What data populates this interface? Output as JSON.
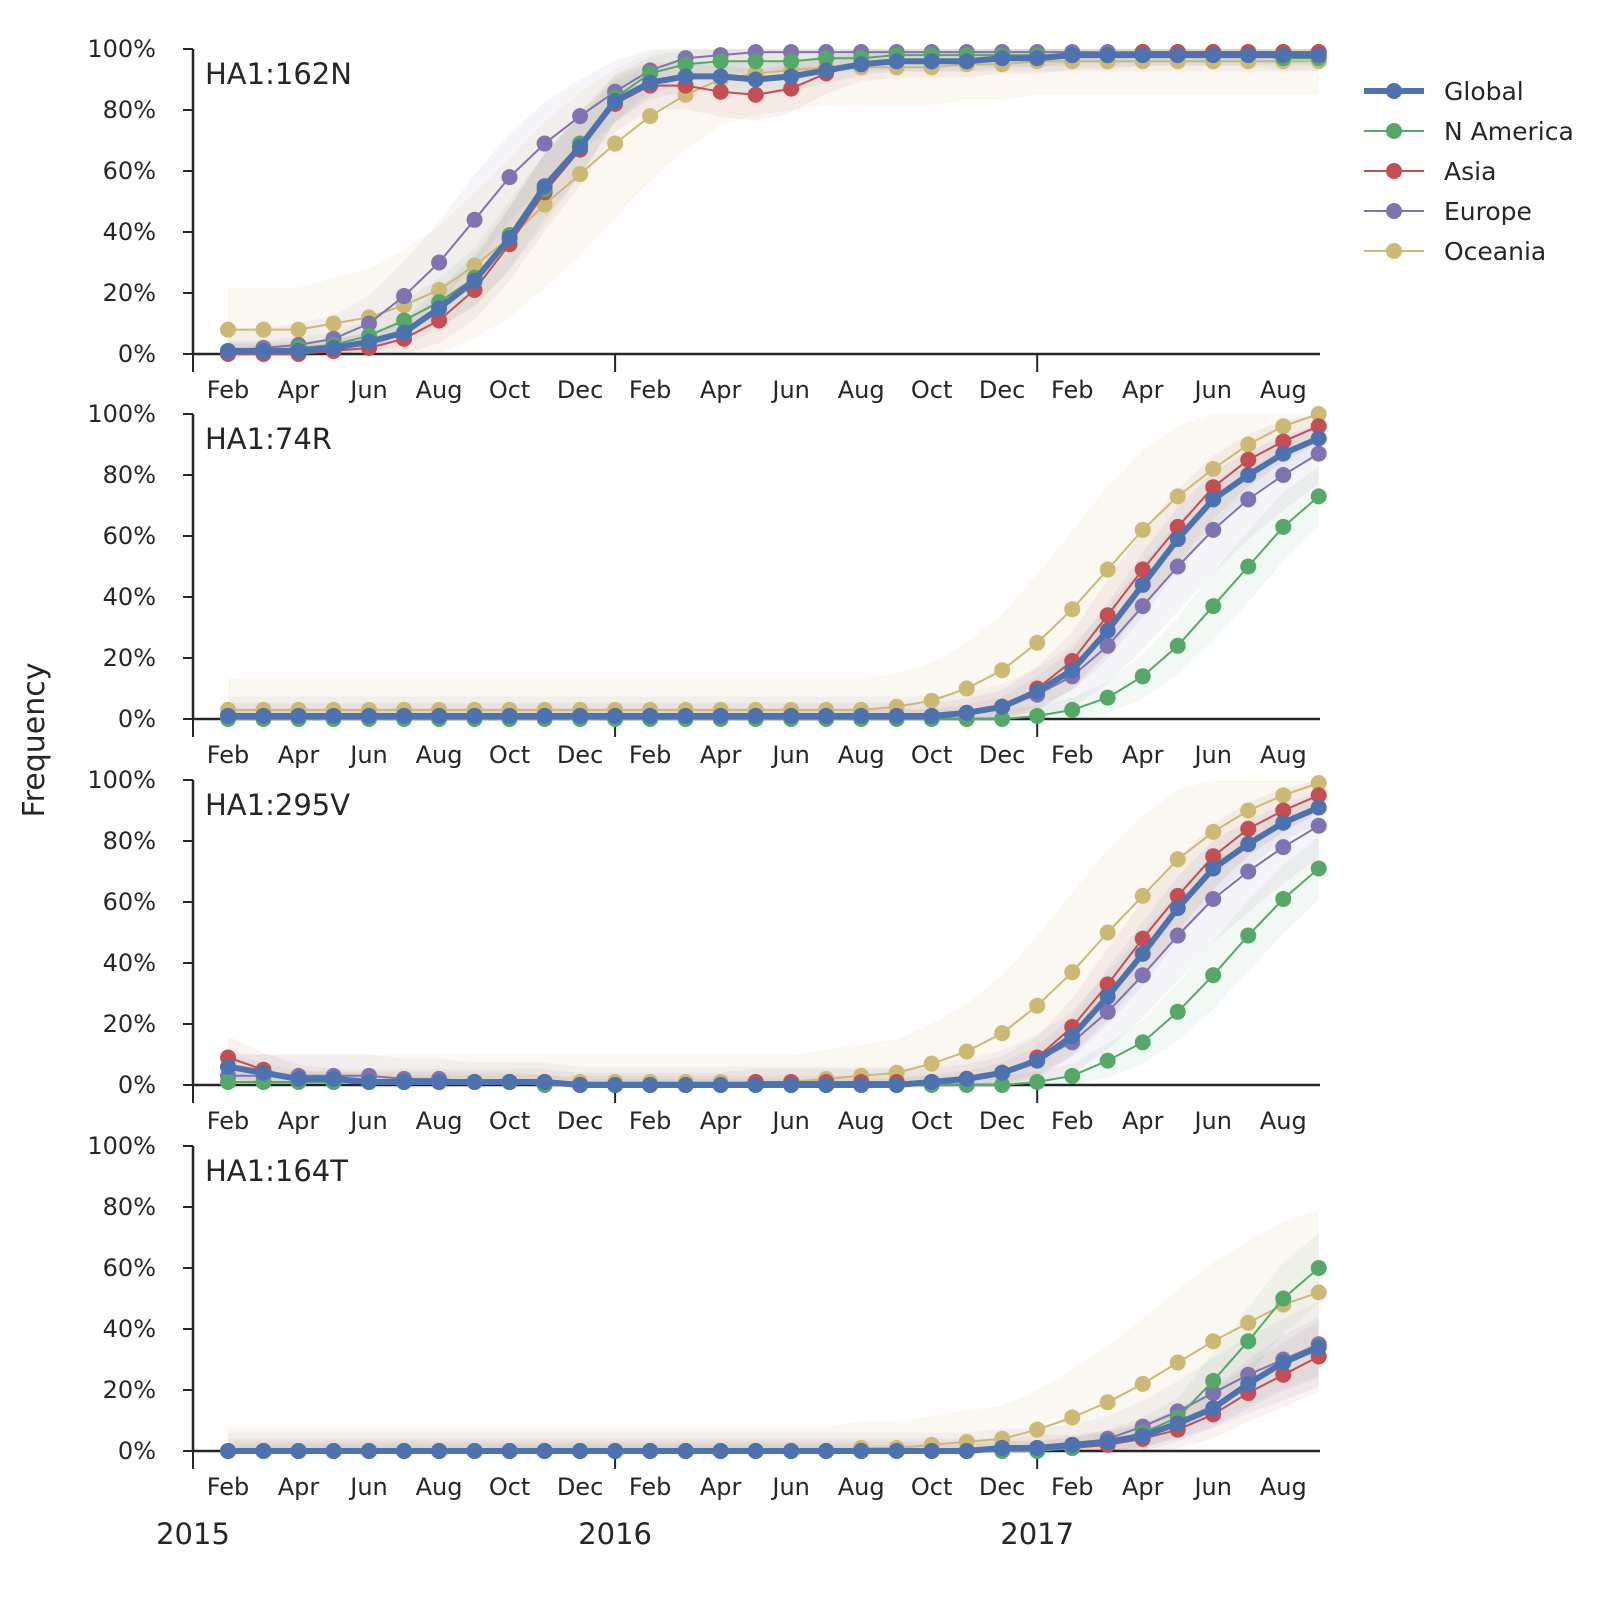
{
  "chart_data": {
    "type": "line",
    "ylabel": "Frequency",
    "yticks": [
      "0%",
      "20%",
      "40%",
      "60%",
      "80%",
      "100%"
    ],
    "ylim": [
      0,
      1
    ],
    "xlim": [
      2015.0,
      2017.67
    ],
    "month_ticks": [
      {
        "x": 2015.083,
        "label": "Feb"
      },
      {
        "x": 2015.25,
        "label": "Apr"
      },
      {
        "x": 2015.417,
        "label": "Jun"
      },
      {
        "x": 2015.583,
        "label": "Aug"
      },
      {
        "x": 2015.75,
        "label": "Oct"
      },
      {
        "x": 2015.917,
        "label": "Dec"
      },
      {
        "x": 2016.083,
        "label": "Feb"
      },
      {
        "x": 2016.25,
        "label": "Apr"
      },
      {
        "x": 2016.417,
        "label": "Jun"
      },
      {
        "x": 2016.583,
        "label": "Aug"
      },
      {
        "x": 2016.75,
        "label": "Oct"
      },
      {
        "x": 2016.917,
        "label": "Dec"
      },
      {
        "x": 2017.083,
        "label": "Feb"
      },
      {
        "x": 2017.25,
        "label": "Apr"
      },
      {
        "x": 2017.417,
        "label": "Jun"
      },
      {
        "x": 2017.583,
        "label": "Aug"
      }
    ],
    "year_ticks": [
      {
        "x": 2015.0,
        "label": "2015"
      },
      {
        "x": 2016.0,
        "label": "2016"
      },
      {
        "x": 2017.0,
        "label": "2017"
      }
    ],
    "legend": {
      "placement": "upper-right-outside"
    },
    "series_styles": [
      {
        "name": "Global",
        "color": "#4c72b0",
        "width": 6
      },
      {
        "name": "N America",
        "color": "#55a868",
        "width": 2
      },
      {
        "name": "Asia",
        "color": "#c44e52",
        "width": 2
      },
      {
        "name": "Europe",
        "color": "#8172b2",
        "width": 2
      },
      {
        "name": "Oceania",
        "color": "#ccb974",
        "width": 2
      }
    ],
    "x": [
      2015.083,
      2015.167,
      2015.25,
      2015.333,
      2015.417,
      2015.5,
      2015.583,
      2015.667,
      2015.75,
      2015.833,
      2015.917,
      2016.0,
      2016.083,
      2016.167,
      2016.25,
      2016.333,
      2016.417,
      2016.5,
      2016.583,
      2016.667,
      2016.75,
      2016.833,
      2016.917,
      2017.0,
      2017.083,
      2017.167,
      2017.25,
      2017.333,
      2017.417,
      2017.5,
      2017.583,
      2017.667
    ],
    "panels": [
      {
        "label": "HA1:162N",
        "series": [
          {
            "name": "Global",
            "values": [
              0.01,
              0.01,
              0.01,
              0.02,
              0.04,
              0.07,
              0.15,
              0.24,
              0.38,
              0.55,
              0.68,
              0.83,
              0.89,
              0.91,
              0.91,
              0.9,
              0.91,
              0.93,
              0.95,
              0.96,
              0.96,
              0.96,
              0.97,
              0.97,
              0.98,
              0.98,
              0.98,
              0.98,
              0.98,
              0.98,
              0.98,
              0.98
            ]
          },
          {
            "name": "N America",
            "values": [
              0.01,
              0.01,
              0.02,
              0.03,
              0.06,
              0.11,
              0.17,
              0.25,
              0.39,
              0.54,
              0.69,
              0.84,
              0.92,
              0.95,
              0.96,
              0.96,
              0.96,
              0.97,
              0.97,
              0.98,
              0.98,
              0.98,
              0.98,
              0.98,
              0.98,
              0.98,
              0.98,
              0.98,
              0.98,
              0.98,
              0.97,
              0.97
            ]
          },
          {
            "name": "Asia",
            "values": [
              0.0,
              0.0,
              0.0,
              0.01,
              0.02,
              0.05,
              0.11,
              0.21,
              0.36,
              0.53,
              0.67,
              0.82,
              0.88,
              0.88,
              0.86,
              0.85,
              0.87,
              0.92,
              0.95,
              0.96,
              0.96,
              0.96,
              0.97,
              0.97,
              0.98,
              0.98,
              0.99,
              0.99,
              0.99,
              0.99,
              0.99,
              0.99
            ]
          },
          {
            "name": "Europe",
            "values": [
              0.01,
              0.02,
              0.03,
              0.05,
              0.1,
              0.19,
              0.3,
              0.44,
              0.58,
              0.69,
              0.78,
              0.86,
              0.93,
              0.97,
              0.98,
              0.99,
              0.99,
              0.99,
              0.99,
              0.99,
              0.99,
              0.99,
              0.99,
              0.99,
              0.99,
              0.99,
              0.99,
              0.99,
              0.99,
              0.99,
              0.99,
              0.99
            ]
          },
          {
            "name": "Oceania",
            "values": [
              0.08,
              0.08,
              0.08,
              0.1,
              0.12,
              0.16,
              0.21,
              0.29,
              0.38,
              0.49,
              0.59,
              0.69,
              0.78,
              0.85,
              0.9,
              0.92,
              0.93,
              0.94,
              0.94,
              0.94,
              0.94,
              0.95,
              0.95,
              0.96,
              0.96,
              0.96,
              0.96,
              0.96,
              0.96,
              0.96,
              0.96,
              0.96
            ]
          }
        ]
      },
      {
        "label": "HA1:74R",
        "series": [
          {
            "name": "Global",
            "values": [
              0.01,
              0.01,
              0.01,
              0.01,
              0.01,
              0.01,
              0.01,
              0.01,
              0.01,
              0.01,
              0.01,
              0.01,
              0.01,
              0.01,
              0.01,
              0.01,
              0.01,
              0.01,
              0.01,
              0.01,
              0.01,
              0.02,
              0.04,
              0.09,
              0.16,
              0.29,
              0.44,
              0.59,
              0.72,
              0.8,
              0.87,
              0.92
            ]
          },
          {
            "name": "N America",
            "values": [
              0.0,
              0.0,
              0.0,
              0.0,
              0.0,
              0.0,
              0.0,
              0.0,
              0.0,
              0.0,
              0.0,
              0.0,
              0.0,
              0.0,
              0.0,
              0.0,
              0.0,
              0.0,
              0.0,
              0.0,
              0.0,
              0.0,
              0.0,
              0.01,
              0.03,
              0.07,
              0.14,
              0.24,
              0.37,
              0.5,
              0.63,
              0.73
            ]
          },
          {
            "name": "Asia",
            "values": [
              0.01,
              0.01,
              0.01,
              0.01,
              0.01,
              0.01,
              0.01,
              0.01,
              0.01,
              0.01,
              0.01,
              0.01,
              0.01,
              0.01,
              0.01,
              0.01,
              0.01,
              0.01,
              0.01,
              0.01,
              0.01,
              0.02,
              0.04,
              0.1,
              0.19,
              0.34,
              0.49,
              0.63,
              0.76,
              0.85,
              0.91,
              0.96
            ]
          },
          {
            "name": "Europe",
            "values": [
              0.01,
              0.01,
              0.01,
              0.01,
              0.01,
              0.01,
              0.01,
              0.01,
              0.01,
              0.01,
              0.01,
              0.01,
              0.01,
              0.01,
              0.01,
              0.01,
              0.01,
              0.01,
              0.01,
              0.01,
              0.01,
              0.02,
              0.04,
              0.08,
              0.14,
              0.24,
              0.37,
              0.5,
              0.62,
              0.72,
              0.8,
              0.87
            ]
          },
          {
            "name": "Oceania",
            "values": [
              0.03,
              0.03,
              0.03,
              0.03,
              0.03,
              0.03,
              0.03,
              0.03,
              0.03,
              0.03,
              0.03,
              0.03,
              0.03,
              0.03,
              0.03,
              0.03,
              0.03,
              0.03,
              0.03,
              0.04,
              0.06,
              0.1,
              0.16,
              0.25,
              0.36,
              0.49,
              0.62,
              0.73,
              0.82,
              0.9,
              0.96,
              1.0
            ]
          }
        ]
      },
      {
        "label": "HA1:295V",
        "series": [
          {
            "name": "Global",
            "values": [
              0.06,
              0.04,
              0.02,
              0.02,
              0.01,
              0.01,
              0.01,
              0.01,
              0.01,
              0.01,
              0.0,
              0.0,
              0.0,
              0.0,
              0.0,
              0.0,
              0.0,
              0.0,
              0.0,
              0.0,
              0.01,
              0.02,
              0.04,
              0.08,
              0.16,
              0.29,
              0.43,
              0.58,
              0.71,
              0.79,
              0.86,
              0.91
            ]
          },
          {
            "name": "N America",
            "values": [
              0.01,
              0.01,
              0.01,
              0.01,
              0.01,
              0.01,
              0.01,
              0.01,
              0.01,
              0.0,
              0.0,
              0.0,
              0.0,
              0.0,
              0.0,
              0.0,
              0.0,
              0.0,
              0.0,
              0.0,
              0.0,
              0.0,
              0.0,
              0.01,
              0.03,
              0.08,
              0.14,
              0.24,
              0.36,
              0.49,
              0.61,
              0.71
            ]
          },
          {
            "name": "Asia",
            "values": [
              0.09,
              0.05,
              0.02,
              0.01,
              0.01,
              0.01,
              0.01,
              0.01,
              0.01,
              0.01,
              0.0,
              0.0,
              0.0,
              0.0,
              0.0,
              0.01,
              0.01,
              0.01,
              0.01,
              0.01,
              0.01,
              0.02,
              0.04,
              0.09,
              0.19,
              0.33,
              0.48,
              0.62,
              0.75,
              0.84,
              0.9,
              0.95
            ]
          },
          {
            "name": "Europe",
            "values": [
              0.03,
              0.03,
              0.03,
              0.03,
              0.03,
              0.02,
              0.02,
              0.01,
              0.01,
              0.01,
              0.0,
              0.0,
              0.0,
              0.0,
              0.0,
              0.0,
              0.0,
              0.0,
              0.0,
              0.0,
              0.01,
              0.02,
              0.04,
              0.08,
              0.14,
              0.24,
              0.36,
              0.49,
              0.61,
              0.7,
              0.78,
              0.85
            ]
          },
          {
            "name": "Oceania",
            "values": [
              0.01,
              0.01,
              0.01,
              0.01,
              0.01,
              0.01,
              0.01,
              0.01,
              0.01,
              0.01,
              0.01,
              0.01,
              0.01,
              0.01,
              0.01,
              0.01,
              0.01,
              0.02,
              0.03,
              0.04,
              0.07,
              0.11,
              0.17,
              0.26,
              0.37,
              0.5,
              0.62,
              0.74,
              0.83,
              0.9,
              0.95,
              0.99
            ]
          }
        ]
      },
      {
        "label": "HA1:164T",
        "series": [
          {
            "name": "Global",
            "values": [
              0.0,
              0.0,
              0.0,
              0.0,
              0.0,
              0.0,
              0.0,
              0.0,
              0.0,
              0.0,
              0.0,
              0.0,
              0.0,
              0.0,
              0.0,
              0.0,
              0.0,
              0.0,
              0.0,
              0.0,
              0.0,
              0.0,
              0.01,
              0.01,
              0.02,
              0.03,
              0.05,
              0.09,
              0.14,
              0.22,
              0.29,
              0.34
            ]
          },
          {
            "name": "N America",
            "values": [
              0.0,
              0.0,
              0.0,
              0.0,
              0.0,
              0.0,
              0.0,
              0.0,
              0.0,
              0.0,
              0.0,
              0.0,
              0.0,
              0.0,
              0.0,
              0.0,
              0.0,
              0.0,
              0.0,
              0.0,
              0.0,
              0.0,
              0.0,
              0.0,
              0.01,
              0.03,
              0.06,
              0.11,
              0.23,
              0.36,
              0.5,
              0.6
            ]
          },
          {
            "name": "Asia",
            "values": [
              0.0,
              0.0,
              0.0,
              0.0,
              0.0,
              0.0,
              0.0,
              0.0,
              0.0,
              0.0,
              0.0,
              0.0,
              0.0,
              0.0,
              0.0,
              0.0,
              0.0,
              0.0,
              0.0,
              0.0,
              0.0,
              0.0,
              0.0,
              0.01,
              0.01,
              0.02,
              0.04,
              0.07,
              0.12,
              0.19,
              0.25,
              0.31
            ]
          },
          {
            "name": "Europe",
            "values": [
              0.0,
              0.0,
              0.0,
              0.0,
              0.0,
              0.0,
              0.0,
              0.0,
              0.0,
              0.0,
              0.0,
              0.0,
              0.0,
              0.0,
              0.0,
              0.0,
              0.0,
              0.0,
              0.0,
              0.0,
              0.0,
              0.0,
              0.01,
              0.01,
              0.02,
              0.04,
              0.08,
              0.13,
              0.19,
              0.25,
              0.3,
              0.35
            ]
          },
          {
            "name": "Oceania",
            "values": [
              0.0,
              0.0,
              0.0,
              0.0,
              0.0,
              0.0,
              0.0,
              0.0,
              0.0,
              0.0,
              0.0,
              0.0,
              0.0,
              0.0,
              0.0,
              0.0,
              0.0,
              0.0,
              0.01,
              0.01,
              0.02,
              0.03,
              0.04,
              0.07,
              0.11,
              0.16,
              0.22,
              0.29,
              0.36,
              0.42,
              0.48,
              0.52
            ]
          }
        ]
      }
    ]
  }
}
